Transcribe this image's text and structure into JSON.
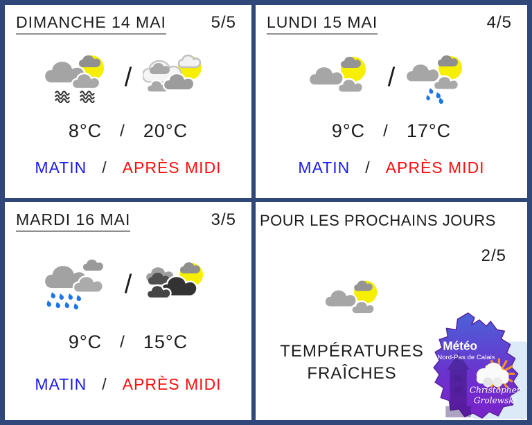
{
  "panels": [
    {
      "title": "DIMANCHE 14 MAI",
      "score": "5/5",
      "sep": "/",
      "morning_icon": "sun-clouds-fog",
      "afternoon_icon": "sun-white-clouds",
      "morning_temp": "8°C",
      "afternoon_temp": "20°C",
      "morning_label": "MATIN",
      "afternoon_label": "APRÈS MIDI"
    },
    {
      "title": "LUNDI 15 MAI",
      "score": "4/5",
      "sep": "/",
      "morning_icon": "sun-clouds",
      "afternoon_icon": "sun-clouds-light-rain",
      "morning_temp": "9°C",
      "afternoon_temp": "17°C",
      "morning_label": "MATIN",
      "afternoon_label": "APRÈS MIDI"
    },
    {
      "title": "MARDI 16 MAI",
      "score": "3/5",
      "sep": "/",
      "morning_icon": "clouds-rain",
      "afternoon_icon": "sun-dark-clouds",
      "morning_temp": "9°C",
      "afternoon_temp": "15°C",
      "morning_label": "MATIN",
      "afternoon_label": "APRÈS MIDI"
    }
  ],
  "outlook": {
    "title": "POUR LES PROCHAINS JOURS",
    "score": "2/5",
    "icon": "sun-clouds",
    "message_line1": "TEMPÉRATURES",
    "message_line2": "FRAÎCHES",
    "logo": {
      "title": "Météo",
      "subtitle": "Nord-Pas de Calais",
      "author_line1": "Christopher",
      "author_line2": "Grolewski"
    }
  },
  "colors": {
    "frame": "#2F4779",
    "sun": "#F7EF00",
    "cloud_gray": "#A6A6A6",
    "dark_cloud": "#333333",
    "rain_blue": "#1D76E8",
    "fog_gray": "#3A3A3A",
    "morning_label_blue": "#1A1AEF",
    "afternoon_label_red": "#FA0F0C",
    "underline_gray": "#8E8E8E",
    "logo_map_top": "#4A63D8",
    "logo_map_bottom": "#7A22C8",
    "logo_sun_orange": "#F6921E"
  }
}
